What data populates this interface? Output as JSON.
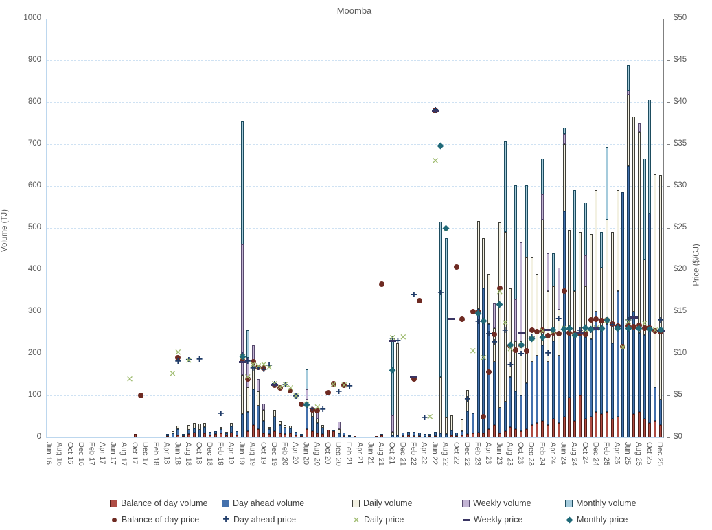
{
  "title": "Moomba",
  "y_left": {
    "label": "Volume (TJ)",
    "min": 0,
    "max": 1000,
    "step": 100,
    "ticks": [
      "0",
      "100",
      "200",
      "300",
      "400",
      "500",
      "600",
      "700",
      "800",
      "900",
      "1000"
    ]
  },
  "y_right": {
    "label": "Price ($/GJ)",
    "min": 0,
    "max": 50,
    "step": 5,
    "ticks": [
      "$0",
      "$5",
      "$10",
      "$15",
      "$20",
      "$25",
      "$30",
      "$35",
      "$40",
      "$45",
      "$50"
    ]
  },
  "x_axis": {
    "n_months": 115,
    "tick_every": 2,
    "tick_labels": [
      "Jun 16",
      "Aug 16",
      "Oct 16",
      "Dec 16",
      "Feb 17",
      "Apr 17",
      "Jun 17",
      "Aug 17",
      "Oct 17",
      "Dec 17",
      "Feb 18",
      "Apr 18",
      "Jun 18",
      "Aug 18",
      "Oct 18",
      "Dec 18",
      "Feb 19",
      "Apr 19",
      "Jun 19",
      "Aug 19",
      "Oct 19",
      "Dec 19",
      "Feb 20",
      "Apr 20",
      "Jun 20",
      "Aug 20",
      "Oct 20",
      "Dec 20",
      "Feb 21",
      "Apr 21",
      "Jun 21",
      "Aug 21",
      "Oct 21",
      "Dec 21",
      "Feb 22",
      "Apr 22",
      "Jun 22",
      "Aug 22",
      "Oct 22",
      "Dec 22",
      "Feb 23",
      "Apr 23",
      "Jun 23",
      "Aug 23",
      "Oct 23",
      "Dec 23",
      "Feb 24",
      "Apr 24",
      "Jun 24",
      "Aug 24",
      "Oct 24",
      "Dec 24",
      "Feb 25",
      "Apr 25",
      "Jun 25",
      "Aug 25",
      "Oct 25",
      "Dec 25"
    ]
  },
  "colors": {
    "grid": "#CFE2F3",
    "axis_light": "#BDD7EE",
    "axis_gray": "#808080",
    "text": "#595959"
  },
  "chart_data": {
    "type": "bar",
    "subtype": "stacked-bars-with-scatter-prices",
    "title": "Moomba",
    "xlabel": "",
    "ylabel_left": "Volume (TJ)",
    "ylabel_right": "Price ($/GJ)",
    "ylim_left": [
      0,
      1000
    ],
    "ylim_right": [
      0,
      50
    ],
    "x_range": "monthly from Jun 2016 to Dec 2025 (115 months, sparse index:value maps below)",
    "legend_position": "bottom",
    "volume_series": [
      {
        "name": "Balance of day volume",
        "color": "#AE4C44",
        "border": "#541d17",
        "values": {
          "16": 8,
          "22": 3,
          "24": 5,
          "25": 3,
          "26": 8,
          "27": 12,
          "29": 10,
          "30": 5,
          "31": 8,
          "32": 10,
          "33": 5,
          "34": 12,
          "35": 5,
          "37": 15,
          "38": 30,
          "39": 20,
          "40": 10,
          "41": 8,
          "42": 15,
          "43": 10,
          "44": 8,
          "45": 10,
          "46": 5,
          "47": 3,
          "48": 20,
          "49": 15,
          "50": 10,
          "51": 8,
          "52": 18,
          "53": 15,
          "55": 3,
          "56": 2,
          "57": 3,
          "61": 3,
          "62": 5,
          "66": 3,
          "67": 5,
          "68": 3,
          "69": 3,
          "70": 2,
          "71": 3,
          "72": 3,
          "75": 5,
          "76": 3,
          "77": 5,
          "78": 8,
          "79": 10,
          "80": 12,
          "81": 10,
          "82": 20,
          "83": 30,
          "84": 10,
          "85": 15,
          "86": 25,
          "87": 20,
          "88": 15,
          "89": 20,
          "90": 30,
          "91": 35,
          "92": 40,
          "93": 30,
          "94": 45,
          "95": 35,
          "96": 50,
          "97": 95,
          "98": 40,
          "99": 100,
          "100": 45,
          "101": 50,
          "102": 60,
          "103": 55,
          "104": 60,
          "105": 45,
          "106": 50,
          "109": 55,
          "110": 60,
          "111": 45,
          "112": 35,
          "113": 40,
          "114": 30
        }
      },
      {
        "name": "Day ahead volume",
        "color": "#4471AD",
        "border": "#1a3a5c",
        "values": {
          "22": 5,
          "23": 10,
          "24": 15,
          "25": 5,
          "26": 10,
          "27": 10,
          "28": 18,
          "29": 15,
          "30": 8,
          "31": 6,
          "32": 10,
          "33": 5,
          "34": 15,
          "35": 10,
          "36": 55,
          "37": 45,
          "38": 85,
          "39": 55,
          "40": 30,
          "41": 12,
          "42": 35,
          "43": 20,
          "44": 15,
          "45": 12,
          "46": 8,
          "47": 5,
          "48": 50,
          "49": 35,
          "50": 25,
          "51": 15,
          "53": 3,
          "54": 10,
          "55": 8,
          "56": 3,
          "62": 3,
          "64": 5,
          "65": 5,
          "66": 8,
          "67": 8,
          "68": 10,
          "69": 8,
          "70": 6,
          "71": 5,
          "72": 10,
          "73": 10,
          "74": 8,
          "75": 12,
          "76": 8,
          "77": 10,
          "78": 55,
          "79": 48,
          "80": 295,
          "81": 345,
          "82": 250,
          "83": 150,
          "84": 60,
          "85": 70,
          "86": 120,
          "87": 90,
          "88": 85,
          "89": 110,
          "90": 150,
          "91": 160,
          "92": 180,
          "93": 150,
          "94": 185,
          "95": 160,
          "96": 490,
          "97": 150,
          "98": 200,
          "99": 145,
          "100": 195,
          "101": 185,
          "102": 240,
          "103": 200,
          "104": 210,
          "105": 180,
          "106": 300,
          "107": 585,
          "108": 648,
          "109": 245,
          "110": 190,
          "111": 200,
          "112": 500,
          "113": 80,
          "114": 60
        }
      },
      {
        "name": "Daily volume",
        "color": "#F3F1E2",
        "border": "#3f3f39",
        "values": {
          "23": 5,
          "24": 8,
          "26": 12,
          "27": 13,
          "28": 15,
          "29": 10,
          "32": 5,
          "33": 3,
          "34": 8,
          "36": 95,
          "37": 60,
          "38": 60,
          "39": 35,
          "40": 25,
          "41": 5,
          "42": 15,
          "43": 10,
          "44": 7,
          "45": 6,
          "48": 20,
          "49": 15,
          "50": 10,
          "51": 7,
          "54": 10,
          "64": 8,
          "65": 220,
          "73": 135,
          "74": 40,
          "75": 35,
          "77": 28,
          "78": 50,
          "80": 210,
          "81": 120,
          "82": 120,
          "83": 80,
          "84": 443,
          "85": 405,
          "86": 210,
          "87": 120,
          "88": 130,
          "89": 300,
          "90": 250,
          "91": 195,
          "92": 300,
          "93": 170,
          "94": 130,
          "95": 110,
          "96": 160,
          "97": 250,
          "98": 110,
          "99": 245,
          "100": 120,
          "101": 250,
          "102": 290,
          "103": 150,
          "104": 250,
          "105": 265,
          "106": 240,
          "108": 170,
          "109": 466,
          "110": 480,
          "111": 180,
          "113": 508,
          "114": 537
        }
      },
      {
        "name": "Weekly volume",
        "color": "#C3B4D4",
        "border": "#574a6e",
        "values": {
          "36": 310,
          "37": 70,
          "38": 45,
          "39": 30,
          "40": 15,
          "48": 25,
          "50": 25,
          "54": 18,
          "64": 40,
          "83": 60,
          "87": 100,
          "88": 235,
          "92": 60,
          "93": 90,
          "95": 100,
          "96": 25,
          "100": 75,
          "108": 10,
          "110": 21
        }
      },
      {
        "name": "Monthly volume",
        "color": "#A5CBDC",
        "border": "#1d4c5e",
        "values": {
          "36": 295,
          "37": 65,
          "48": 48,
          "64": 177,
          "73": 370,
          "74": 427,
          "85": 217,
          "87": 272,
          "89": 172,
          "92": 85,
          "94": 80,
          "96": 15,
          "98": 240,
          "100": 125,
          "103": 85,
          "104": 173,
          "108": 60,
          "111": 240,
          "112": 271
        }
      }
    ],
    "price_series": [
      {
        "name": "Balance of day price",
        "marker": "dot",
        "color": "#6E2A22",
        "values": {
          "17": 5.0,
          "24": 9.5,
          "36": 9.3,
          "37": 7.0,
          "38": 9.0,
          "39": 8.4,
          "40": 8.3,
          "42": 6.2,
          "43": 5.9,
          "45": 5.6,
          "47": 3.9,
          "49": 3.3,
          "50": 3.2,
          "52": 5.3,
          "53": 6.4,
          "55": 6.2,
          "62": 18.3,
          "68": 7.0,
          "69": 16.3,
          "72": 39.0,
          "76": 20.3,
          "77": 14.1,
          "79": 15.0,
          "80": 14.9,
          "81": 2.5,
          "82": 7.8,
          "83": 12.3,
          "84": 17.8,
          "86": 10.9,
          "87": 10.4,
          "88": 11.0,
          "89": 10.3,
          "90": 12.8,
          "91": 12.6,
          "92": 12.8,
          "93": 12.1,
          "94": 12.5,
          "95": 12.4,
          "96": 17.5,
          "97": 12.5,
          "98": 12.4,
          "99": 12.4,
          "100": 12.3,
          "101": 14.0,
          "102": 14.1,
          "103": 13.9,
          "104": 14.0,
          "105": 13.5,
          "106": 13.3,
          "107": 10.8,
          "108": 13.3,
          "109": 13.2,
          "110": 13.4,
          "111": 13.0,
          "112": 13.0,
          "113": 12.7,
          "114": 12.6
        }
      },
      {
        "name": "Day ahead price",
        "marker": "plus",
        "color": "#1F3B68",
        "values": {
          "24": 9.0,
          "26": 9.2,
          "28": 9.3,
          "32": 2.75,
          "36": 9.8,
          "37": 9.0,
          "38": 8.2,
          "39": 8.3,
          "40": 8.0,
          "41": 8.5,
          "42": 6.3,
          "44": 6.2,
          "46": 4.8,
          "48": 3.8,
          "49": 3.4,
          "51": 3.3,
          "54": 5.4,
          "56": 6.1,
          "64": 11.7,
          "65": 11.5,
          "68": 17.0,
          "70": 2.3,
          "72": 39.0,
          "73": 17.25,
          "78": 4.5,
          "80": 13.8,
          "82": 12.3,
          "83": 11.3,
          "85": 12.7,
          "86": 8.6,
          "88": 9.9,
          "90": 11.9,
          "93": 10.0,
          "95": 14.1,
          "99": 12.7,
          "101": 12.7,
          "105": 13.4,
          "106": 13.1,
          "108": 13.9,
          "114": 13.9
        }
      },
      {
        "name": "Daily price",
        "marker": "x",
        "color": "#9EBB6E",
        "values": {
          "15": 7.0,
          "23": 7.6,
          "24": 10.2,
          "26": 9.2,
          "36": 9.6,
          "37": 7.2,
          "38": 8.7,
          "39": 8.5,
          "40": 8.7,
          "41": 8.4,
          "42": 6.4,
          "43": 6.0,
          "44": 6.3,
          "45": 5.9,
          "46": 4.9,
          "48": 3.9,
          "50": 3.6,
          "53": 6.3,
          "55": 6.2,
          "64": 11.9,
          "66": 12.0,
          "71": 2.5,
          "72": 33.0,
          "74": 24.8,
          "79": 10.3,
          "81": 9.5,
          "84": 17.4,
          "85": 13.7,
          "86": 10.6,
          "88": 11.0,
          "90": 11.8,
          "92": 12.7,
          "94": 12.6,
          "96": 13.0,
          "98": 12.2,
          "100": 12.9,
          "102": 13.0,
          "104": 13.9,
          "107": 10.7,
          "108": 13.8,
          "111": 13.6,
          "113": 12.8
        }
      },
      {
        "name": "Weekly price",
        "marker": "dash",
        "color": "#3A3563",
        "values": {
          "36": 9.0,
          "42": 6.3,
          "64": 11.5,
          "68": 7.2,
          "72": 39.0,
          "75": 14.1,
          "88": 12.5,
          "93": 12.8,
          "99": 12.5,
          "102": 13.0,
          "109": 14.3,
          "114": 12.7
        }
      },
      {
        "name": "Monthly price",
        "marker": "diamond",
        "color": "#1F6978",
        "values": {
          "36": 9.6,
          "48": 3.9,
          "64": 8.0,
          "73": 34.8,
          "74": 25.0,
          "80": 14.8,
          "81": 13.9,
          "84": 15.9,
          "86": 11.0,
          "88": 11.0,
          "90": 11.8,
          "92": 11.9,
          "94": 12.8,
          "96": 12.9,
          "97": 13.0,
          "98": 12.2,
          "100": 13.1,
          "101": 12.9,
          "103": 13.0,
          "104": 14.0,
          "106": 13.0,
          "108": 13.0,
          "110": 13.0,
          "112": 12.9,
          "114": 12.8
        }
      }
    ]
  },
  "legend": {
    "columns": [
      {
        "volume": "Balance of day volume",
        "price": "Balance of day price"
      },
      {
        "volume": "Day ahead volume",
        "price": "Day ahead price"
      },
      {
        "volume": "Daily volume",
        "price": "Daily price"
      },
      {
        "volume": "Weekly volume",
        "price": "Weekly price"
      },
      {
        "volume": "Monthly volume",
        "price": "Monthly price"
      }
    ]
  }
}
